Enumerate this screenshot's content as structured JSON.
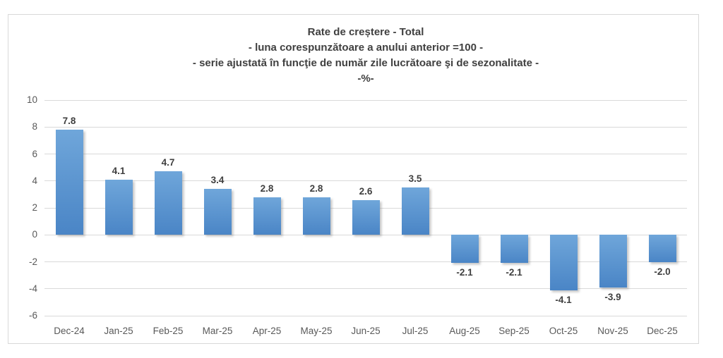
{
  "chart_data": {
    "type": "bar",
    "title_lines": [
      "Rate de creștere - Total",
      "- luna corespunzătoare a anului anterior =100 -",
      "- serie ajustată în funcţie de număr zile lucrătoare şi de sezonalitate -",
      "-%-"
    ],
    "categories": [
      "Dec-24",
      "Jan-25",
      "Feb-25",
      "Mar-25",
      "Apr-25",
      "May-25",
      "Jun-25",
      "Jul-25",
      "Aug-25",
      "Sep-25",
      "Oct-25",
      "Nov-25",
      "Dec-25"
    ],
    "values": [
      7.8,
      4.1,
      4.7,
      3.4,
      2.8,
      2.8,
      2.6,
      3.5,
      -2.1,
      -2.1,
      -4.1,
      -3.9,
      -2.0
    ],
    "value_labels": [
      "7.8",
      "4.1",
      "4.7",
      "3.4",
      "2.8",
      "2.8",
      "2.6",
      "3.5",
      "-2.1",
      "-2.1",
      "-4.1",
      "-3.9",
      "-2.0"
    ],
    "yticks": [
      10,
      8,
      6,
      4,
      2,
      0,
      -2,
      -4,
      -6
    ],
    "ylim": [
      -6,
      10
    ],
    "xlabel": "",
    "ylabel": "",
    "grid": true,
    "legend": "none",
    "colors": {
      "bar_top": "#6fa6da",
      "bar_bottom": "#4a85c6",
      "gridline": "#d9d9d9",
      "axis_text": "#595959",
      "title_text": "#404040",
      "frame_border": "#d9d9d9",
      "background": "#ffffff"
    }
  }
}
